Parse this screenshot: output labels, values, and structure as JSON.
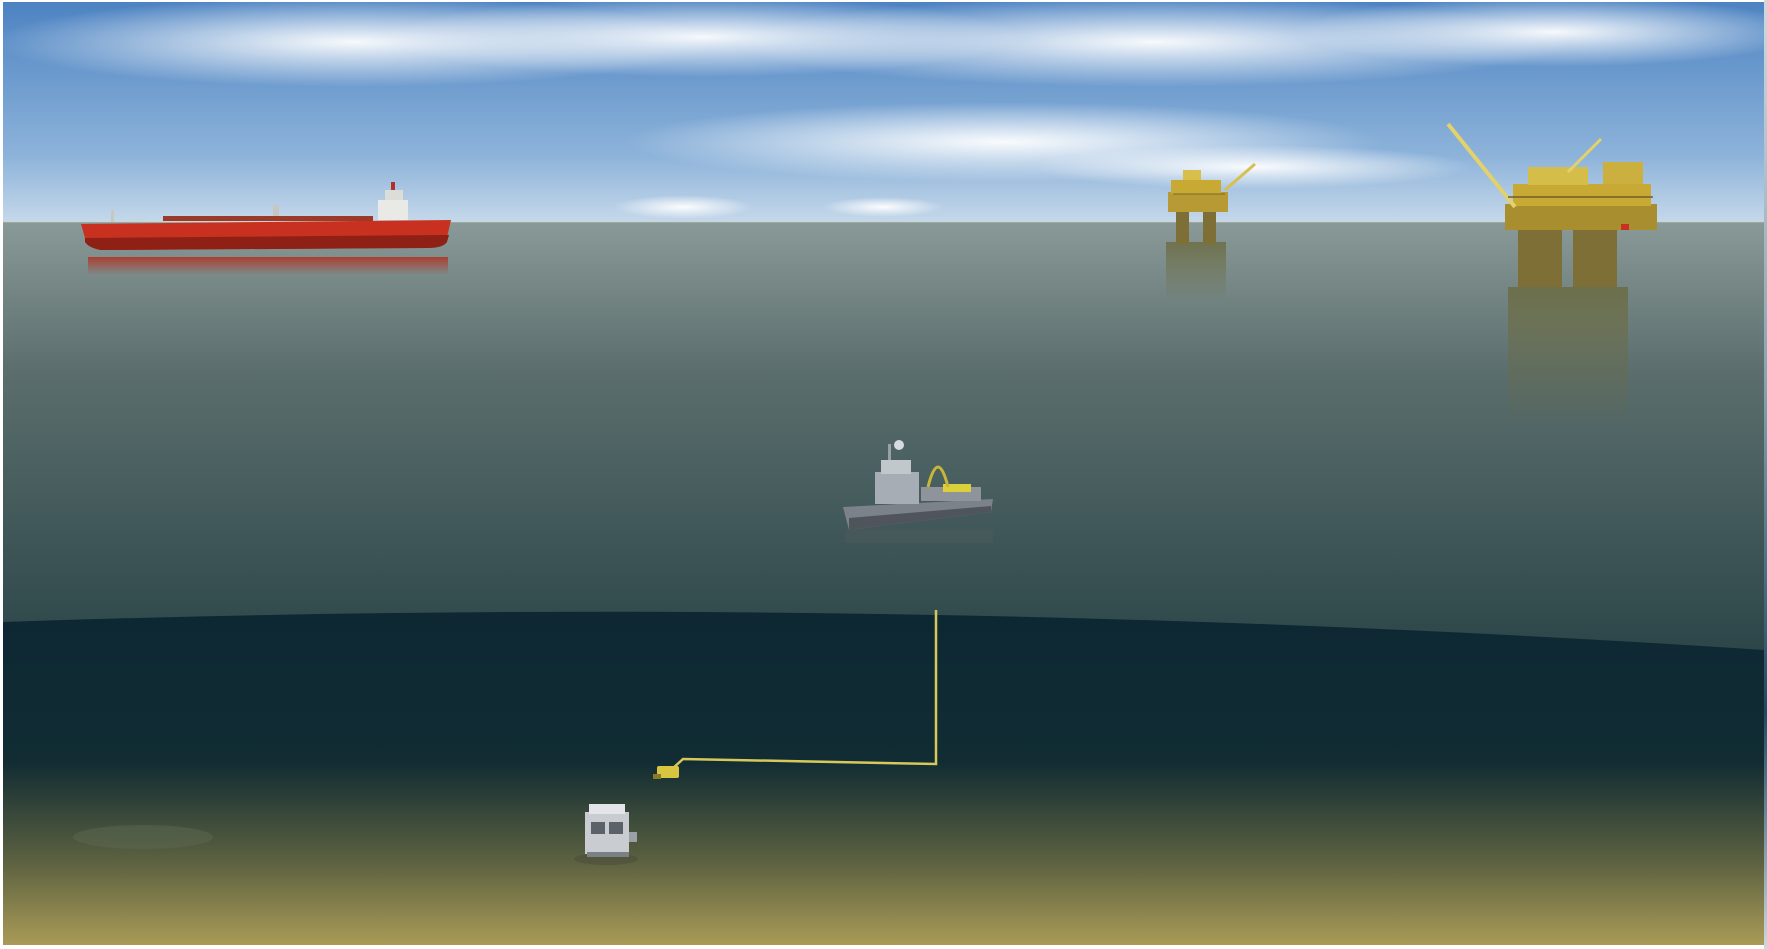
{
  "scene": {
    "description_kind": "illustration",
    "colors": {
      "sky_top": "#4f86c4",
      "sky_horizon": "#b8d0e6",
      "sea_far": "#7d8f8c",
      "sea_near": "#2f4a4c",
      "deep_water": "#0f2a36",
      "seabed": "#a89a55",
      "tanker_hull": "#c8301f",
      "platform_steel": "#c7a934",
      "platform_leg": "#8a7a3a",
      "vessel_gray": "#8a8f96",
      "cable_yellow": "#d6c85a"
    },
    "objects": [
      {
        "icon": "oil-tanker-icon"
      },
      {
        "icon": "offshore-platform-icon"
      },
      {
        "icon": "offshore-platform-icon"
      },
      {
        "icon": "support-vessel-icon"
      },
      {
        "icon": "tether-cable-icon"
      },
      {
        "icon": "rov-icon"
      },
      {
        "icon": "subsea-module-icon"
      }
    ]
  }
}
